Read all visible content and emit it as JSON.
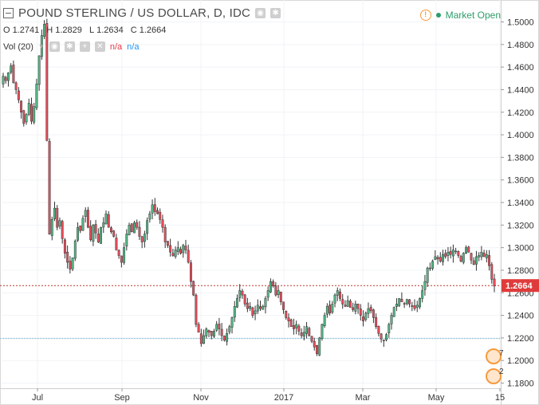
{
  "legend": {
    "title": "POUND STERLING / US DOLLAR, D, IDC",
    "ohlc": [
      {
        "key": "O",
        "value": "1.2741"
      },
      {
        "key": "H",
        "value": "1.2829"
      },
      {
        "key": "L",
        "value": "1.2634"
      },
      {
        "key": "C",
        "value": "1.2664"
      }
    ],
    "volume_label": "Vol (20)",
    "volume_value_1": "n/a",
    "volume_value_2": "n/a"
  },
  "market_status": {
    "warning_glyph": "!",
    "label": "Market Open",
    "color": "#2e9c6a"
  },
  "price_tag": "1.2664",
  "event_markers": [
    "7",
    "2"
  ],
  "colors": {
    "up": "#53b987",
    "down": "#eb4d5c",
    "wick": "#333333",
    "last_price_line": "#c0392b",
    "horizontal_line": "#5fa8c8"
  },
  "chart_data": {
    "type": "candlestick",
    "title": "POUND STERLING / US DOLLAR, D, IDC",
    "ylim": [
      1.18,
      1.51
    ],
    "y_ticks": [
      "1.1800",
      "1.2000",
      "1.2200",
      "1.2400",
      "1.2600",
      "1.2800",
      "1.3000",
      "1.3200",
      "1.3400",
      "1.3600",
      "1.3800",
      "1.4000",
      "1.4200",
      "1.4400",
      "1.4600",
      "1.4800",
      "1.5000"
    ],
    "x_tick_labels": [
      "Jul",
      "Sep",
      "Nov",
      "2017",
      "Mar",
      "May",
      "15"
    ],
    "last_price": 1.2664,
    "horizontal_line": 1.2195,
    "series_close": [
      1.452,
      1.448,
      1.455,
      1.461,
      1.446,
      1.44,
      1.431,
      1.42,
      1.41,
      1.418,
      1.428,
      1.412,
      1.425,
      1.445,
      1.47,
      1.488,
      1.498,
      1.395,
      1.312,
      1.325,
      1.335,
      1.318,
      1.324,
      1.308,
      1.295,
      1.287,
      1.281,
      1.291,
      1.306,
      1.318,
      1.315,
      1.326,
      1.333,
      1.318,
      1.307,
      1.32,
      1.313,
      1.305,
      1.318,
      1.322,
      1.33,
      1.318,
      1.314,
      1.31,
      1.298,
      1.293,
      1.287,
      1.3,
      1.312,
      1.32,
      1.314,
      1.322,
      1.318,
      1.31,
      1.305,
      1.312,
      1.324,
      1.33,
      1.338,
      1.332,
      1.33,
      1.325,
      1.318,
      1.305,
      1.302,
      1.296,
      1.293,
      1.298,
      1.3,
      1.295,
      1.302,
      1.298,
      1.287,
      1.27,
      1.258,
      1.232,
      1.225,
      1.215,
      1.222,
      1.228,
      1.225,
      1.222,
      1.226,
      1.232,
      1.228,
      1.222,
      1.218,
      1.224,
      1.23,
      1.238,
      1.248,
      1.255,
      1.262,
      1.258,
      1.25,
      1.246,
      1.248,
      1.24,
      1.244,
      1.249,
      1.246,
      1.248,
      1.255,
      1.262,
      1.27,
      1.266,
      1.258,
      1.262,
      1.252,
      1.245,
      1.238,
      1.235,
      1.23,
      1.228,
      1.232,
      1.226,
      1.222,
      1.225,
      1.23,
      1.222,
      1.217,
      1.212,
      1.206,
      1.22,
      1.232,
      1.24,
      1.248,
      1.242,
      1.25,
      1.258,
      1.262,
      1.255,
      1.25,
      1.248,
      1.253,
      1.247,
      1.245,
      1.25,
      1.246,
      1.24,
      1.235,
      1.242,
      1.246,
      1.244,
      1.238,
      1.23,
      1.224,
      1.219,
      1.218,
      1.223,
      1.232,
      1.24,
      1.247,
      1.25,
      1.255,
      1.252,
      1.25,
      1.254,
      1.25,
      1.248,
      1.246,
      1.249,
      1.255,
      1.262,
      1.27,
      1.282,
      1.282,
      1.288,
      1.292,
      1.29,
      1.288,
      1.294,
      1.292,
      1.296,
      1.294,
      1.298,
      1.297,
      1.293,
      1.288,
      1.295,
      1.3,
      1.296,
      1.289,
      1.285,
      1.292,
      1.293,
      1.296,
      1.292,
      1.294,
      1.284,
      1.272,
      1.266
    ]
  }
}
